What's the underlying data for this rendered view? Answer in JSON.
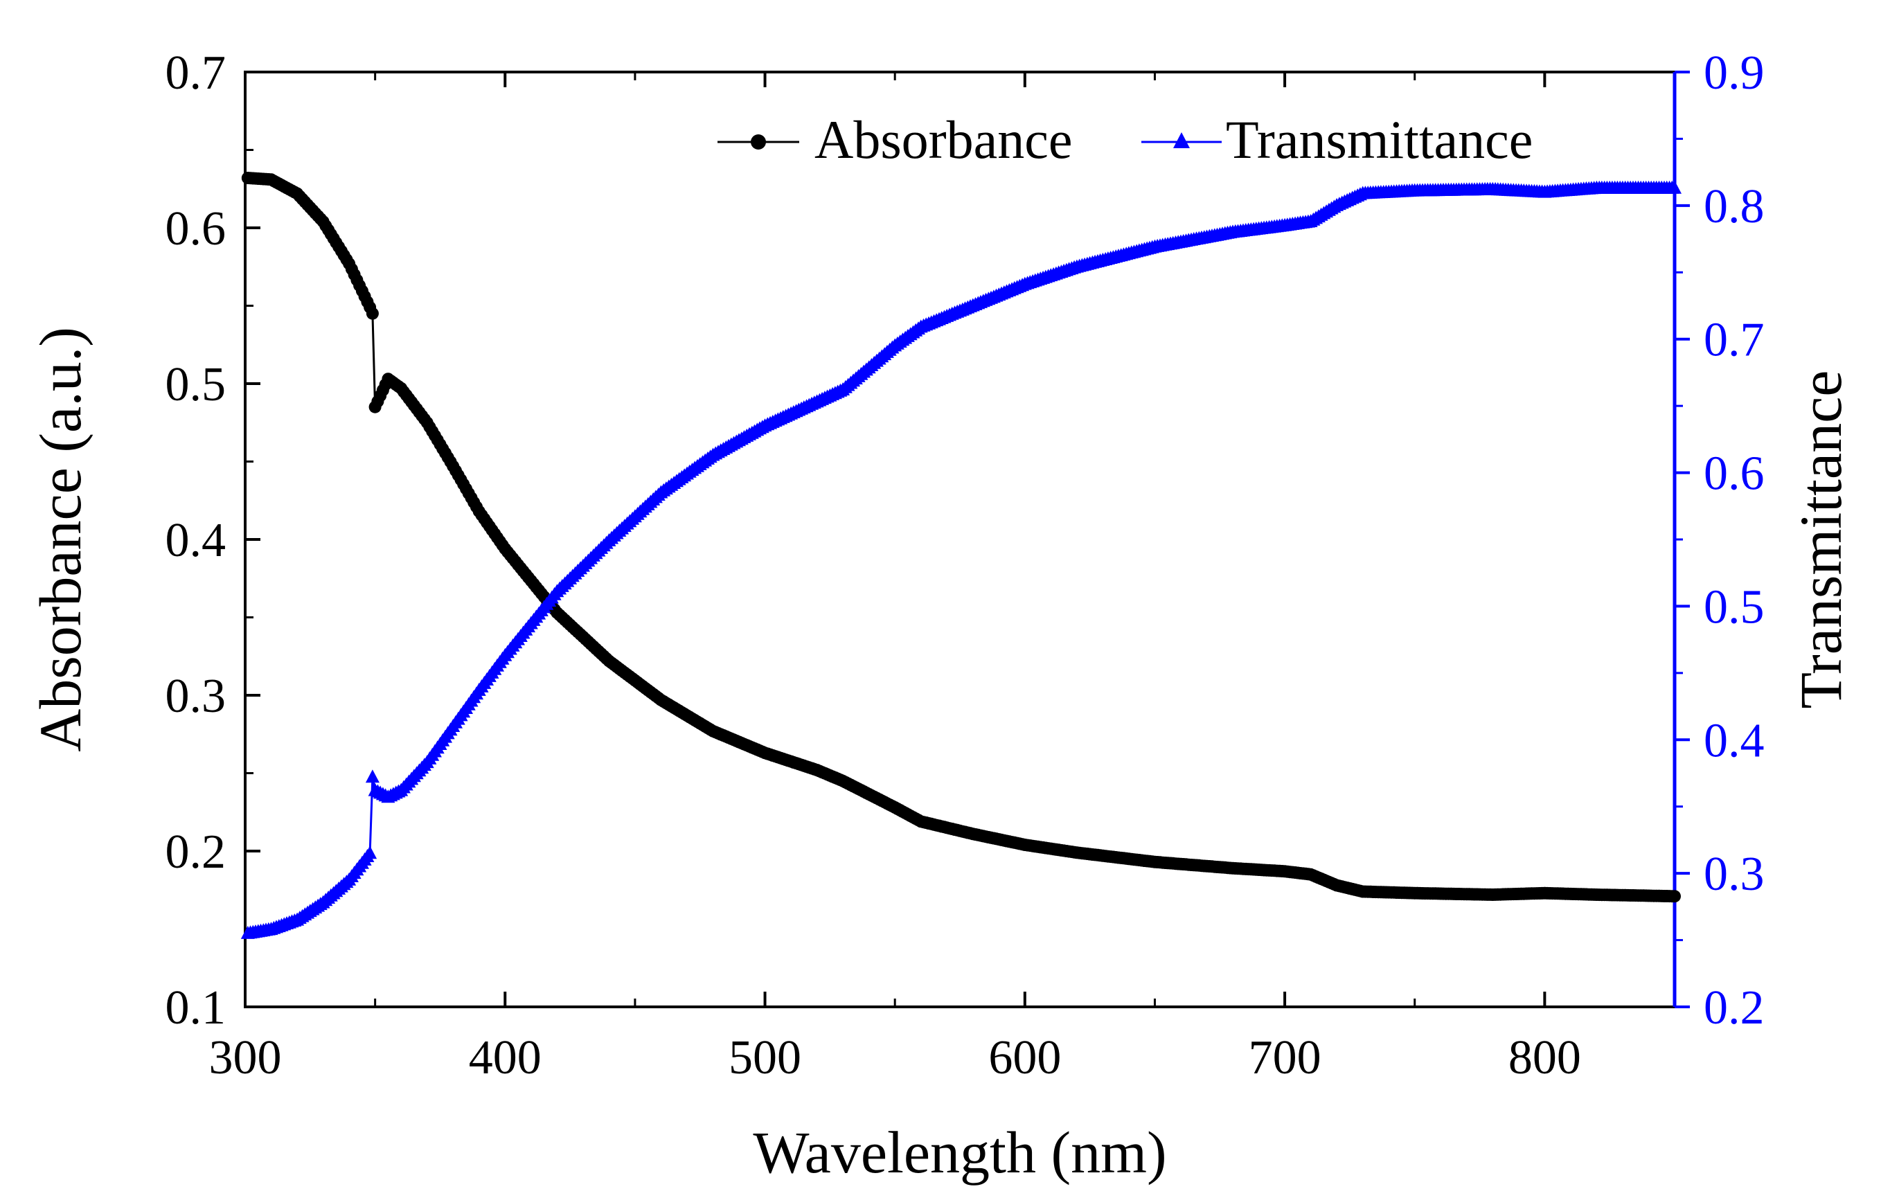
{
  "chart_data": {
    "type": "line",
    "title": "",
    "xlabel": "Wavelength (nm)",
    "ylabel_left": "Absorbance (a.u.)",
    "ylabel_right": "Transmittance",
    "xlim": [
      300,
      850
    ],
    "ylim_left": [
      0.1,
      0.7
    ],
    "ylim_right": [
      0.2,
      0.9
    ],
    "x_ticks": [
      "300",
      "400",
      "500",
      "600",
      "700",
      "800"
    ],
    "y_left_ticks": [
      "0.1",
      "0.2",
      "0.3",
      "0.4",
      "0.5",
      "0.6",
      "0.7"
    ],
    "y_right_ticks": [
      "0.2",
      "0.3",
      "0.4",
      "0.5",
      "0.6",
      "0.7",
      "0.8",
      "0.9"
    ],
    "legend": {
      "placement": "top-center",
      "entries": [
        "Absorbance",
        "Transmittance"
      ]
    },
    "colors": {
      "absorbance": "#000000",
      "transmittance": "#0000ff",
      "right_axis": "#0000ff"
    },
    "series": [
      {
        "name": "Absorbance",
        "axis": "left",
        "marker": "circle",
        "x": [
          301,
          310,
          320,
          330,
          340,
          348,
          349,
          350,
          355,
          360,
          370,
          380,
          390,
          400,
          420,
          440,
          460,
          480,
          500,
          520,
          530,
          550,
          560,
          580,
          600,
          620,
          650,
          680,
          700,
          710,
          720,
          730,
          750,
          780,
          800,
          820,
          850
        ],
        "values": [
          0.632,
          0.631,
          0.622,
          0.604,
          0.577,
          0.549,
          0.545,
          0.485,
          0.503,
          0.497,
          0.475,
          0.447,
          0.418,
          0.394,
          0.353,
          0.322,
          0.297,
          0.277,
          0.263,
          0.252,
          0.245,
          0.228,
          0.219,
          0.211,
          0.204,
          0.199,
          0.193,
          0.189,
          0.187,
          0.185,
          0.178,
          0.174,
          0.173,
          0.172,
          0.173,
          0.172,
          0.171
        ]
      },
      {
        "name": "Transmittance",
        "axis": "right",
        "marker": "triangle",
        "x": [
          301,
          310,
          320,
          330,
          340,
          348,
          349,
          350,
          355,
          360,
          370,
          380,
          390,
          400,
          420,
          440,
          460,
          480,
          500,
          520,
          530,
          550,
          560,
          580,
          600,
          620,
          650,
          680,
          700,
          710,
          720,
          730,
          750,
          780,
          800,
          820,
          850
        ],
        "values": [
          0.255,
          0.258,
          0.265,
          0.278,
          0.295,
          0.315,
          0.372,
          0.362,
          0.357,
          0.362,
          0.383,
          0.41,
          0.437,
          0.463,
          0.511,
          0.549,
          0.585,
          0.613,
          0.635,
          0.653,
          0.662,
          0.695,
          0.709,
          0.725,
          0.741,
          0.754,
          0.769,
          0.78,
          0.785,
          0.788,
          0.8,
          0.809,
          0.811,
          0.812,
          0.81,
          0.813,
          0.813
        ]
      }
    ]
  }
}
